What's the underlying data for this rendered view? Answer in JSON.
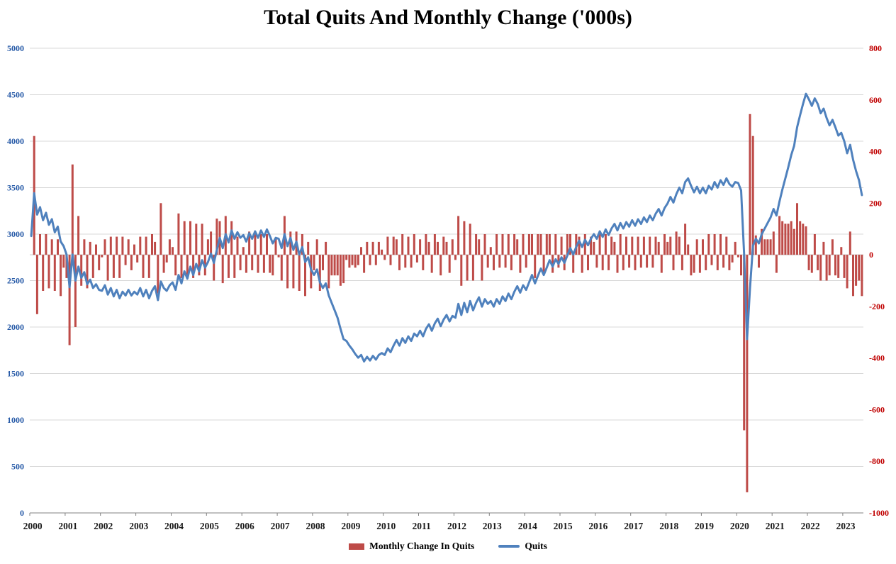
{
  "title": "Total Quits And Monthly Change ('000s)",
  "legend": {
    "bar_label": "Monthly Change In Quits",
    "line_label": "Quits"
  },
  "chart_data": {
    "type": "line+bar combo",
    "frequency": "monthly",
    "x_range": {
      "start": "2000-01",
      "end": "2023-07"
    },
    "x_tick_labels": [
      "2000",
      "2001",
      "2002",
      "2003",
      "2004",
      "2005",
      "2006",
      "2007",
      "2008",
      "2009",
      "2010",
      "2011",
      "2012",
      "2013",
      "2014",
      "2015",
      "2016",
      "2017",
      "2018",
      "2019",
      "2020",
      "2021",
      "2022",
      "2023"
    ],
    "left_axis": {
      "min": 0,
      "max": 5000,
      "step": 500,
      "color": "#2458A6",
      "tick_labels": [
        "0",
        "500",
        "1000",
        "1500",
        "2000",
        "2500",
        "3000",
        "3500",
        "4000",
        "4500",
        "5000"
      ]
    },
    "right_axis": {
      "min": -1000,
      "max": 800,
      "step": 200,
      "color": "#C00000",
      "tick_labels": [
        "-1000",
        "-800",
        "-600",
        "-400",
        "-200",
        "0",
        "200",
        "400",
        "600",
        "800"
      ]
    },
    "grid": "horizontal, aligned to left axis ticks",
    "legend_position": "bottom-center",
    "series": [
      {
        "name": "Quits",
        "type": "line",
        "axis": "left",
        "color": "#4F81BD",
        "values": [
          2980,
          3440,
          3210,
          3290,
          3150,
          3230,
          3100,
          3160,
          3020,
          3080,
          2920,
          2870,
          2780,
          2430,
          2780,
          2500,
          2650,
          2530,
          2590,
          2460,
          2510,
          2420,
          2460,
          2400,
          2390,
          2450,
          2350,
          2420,
          2330,
          2400,
          2310,
          2380,
          2340,
          2400,
          2340,
          2380,
          2350,
          2420,
          2330,
          2400,
          2310,
          2390,
          2440,
          2290,
          2490,
          2420,
          2390,
          2450,
          2480,
          2400,
          2560,
          2470,
          2600,
          2520,
          2650,
          2560,
          2680,
          2600,
          2720,
          2640,
          2700,
          2790,
          2690,
          2830,
          2960,
          2850,
          3000,
          2910,
          3040,
          2950,
          3020,
          2960,
          2990,
          2920,
          3010,
          2950,
          3030,
          2960,
          3040,
          2970,
          3050,
          2980,
          2900,
          2960,
          2950,
          2850,
          3000,
          2870,
          2960,
          2830,
          2920,
          2780,
          2860,
          2700,
          2750,
          2620,
          2560,
          2620,
          2480,
          2420,
          2470,
          2340,
          2260,
          2180,
          2100,
          1980,
          1870,
          1850,
          1800,
          1760,
          1710,
          1670,
          1700,
          1630,
          1680,
          1640,
          1690,
          1650,
          1700,
          1720,
          1700,
          1770,
          1730,
          1800,
          1860,
          1800,
          1880,
          1830,
          1900,
          1850,
          1930,
          1900,
          1960,
          1900,
          1980,
          2030,
          1960,
          2040,
          2090,
          2010,
          2080,
          2130,
          2060,
          2120,
          2100,
          2250,
          2130,
          2260,
          2160,
          2280,
          2180,
          2260,
          2320,
          2220,
          2300,
          2250,
          2280,
          2220,
          2300,
          2250,
          2330,
          2280,
          2360,
          2300,
          2380,
          2440,
          2370,
          2450,
          2400,
          2480,
          2560,
          2470,
          2550,
          2630,
          2560,
          2640,
          2720,
          2650,
          2730,
          2680,
          2750,
          2690,
          2770,
          2850,
          2780,
          2860,
          2930,
          2860,
          2940,
          2880,
          2950,
          3000,
          2950,
          3030,
          2970,
          3050,
          2990,
          3060,
          3110,
          3040,
          3120,
          3060,
          3130,
          3080,
          3150,
          3090,
          3160,
          3110,
          3180,
          3130,
          3200,
          3150,
          3220,
          3270,
          3200,
          3280,
          3330,
          3400,
          3340,
          3430,
          3500,
          3440,
          3560,
          3600,
          3520,
          3450,
          3510,
          3440,
          3500,
          3440,
          3520,
          3480,
          3560,
          3500,
          3580,
          3530,
          3600,
          3540,
          3510,
          3560,
          3550,
          3470,
          2790,
          1870,
          2415,
          2875,
          2950,
          2900,
          3000,
          3060,
          3120,
          3180,
          3270,
          3200,
          3350,
          3480,
          3600,
          3720,
          3850,
          3950,
          4150,
          4280,
          4400,
          4510,
          4450,
          4380,
          4460,
          4400,
          4300,
          4350,
          4250,
          4170,
          4230,
          4150,
          4060,
          4090,
          4000,
          3870,
          3960,
          3800,
          3680,
          3580,
          3420
        ]
      },
      {
        "name": "Monthly Change In Quits",
        "type": "bar",
        "axis": "right",
        "color": "#BE4B48",
        "derivation": "month-over-month difference of the Quits series values"
      }
    ]
  }
}
